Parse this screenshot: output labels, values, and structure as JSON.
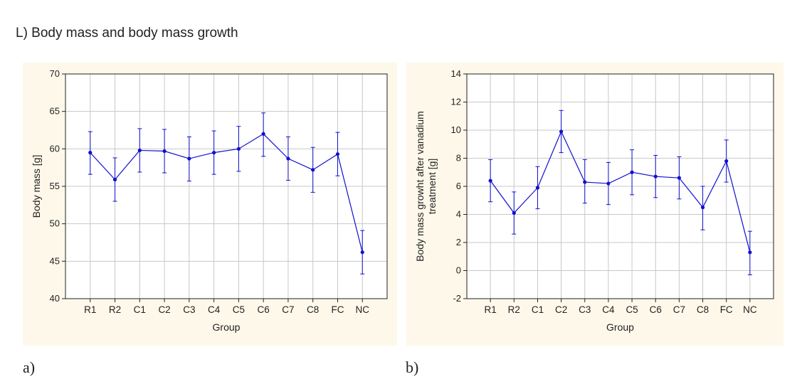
{
  "page_title": "L) Body mass and body mass growth",
  "panel_labels": [
    "a)",
    "b)"
  ],
  "colors": {
    "series": "#1010d0",
    "panel_bg": "#fdf8ea",
    "grid": "#c8c8c8"
  },
  "chart_data": [
    {
      "type": "line",
      "title": "",
      "xlabel": "Group",
      "ylabel": "Body mass [g]",
      "ylim": [
        40,
        70
      ],
      "yticks": [
        40,
        45,
        50,
        55,
        60,
        65,
        70
      ],
      "grid": true,
      "categories": [
        "R1",
        "R2",
        "C1",
        "C2",
        "C3",
        "C4",
        "C5",
        "C6",
        "C7",
        "C8",
        "FC",
        "NC"
      ],
      "series": [
        {
          "values": [
            59.5,
            55.9,
            59.8,
            59.7,
            58.7,
            59.5,
            60.0,
            62.0,
            58.7,
            57.2,
            59.3,
            46.2
          ],
          "error_low": [
            56.6,
            53.0,
            56.9,
            56.8,
            55.7,
            56.6,
            57.0,
            59.0,
            55.8,
            54.2,
            56.4,
            43.3
          ],
          "error_high": [
            62.3,
            58.8,
            62.7,
            62.6,
            61.6,
            62.4,
            63.0,
            64.8,
            61.6,
            60.2,
            62.2,
            49.1
          ]
        }
      ]
    },
    {
      "type": "line",
      "title": "",
      "xlabel": "Group",
      "ylabel_lines": [
        "Body mass growht after vanadium",
        "treatment [g]"
      ],
      "ylim": [
        -2,
        14
      ],
      "yticks": [
        -2,
        0,
        2,
        4,
        6,
        8,
        10,
        12,
        14
      ],
      "grid": true,
      "categories": [
        "R1",
        "R2",
        "C1",
        "C2",
        "C3",
        "C4",
        "C5",
        "C6",
        "C7",
        "C8",
        "FC",
        "NC"
      ],
      "series": [
        {
          "values": [
            6.4,
            4.1,
            5.9,
            9.9,
            6.3,
            6.2,
            7.0,
            6.7,
            6.6,
            4.5,
            7.8,
            1.3
          ],
          "error_low": [
            4.9,
            2.6,
            4.4,
            8.4,
            4.8,
            4.7,
            5.4,
            5.2,
            5.1,
            2.9,
            6.3,
            -0.3
          ],
          "error_high": [
            7.9,
            5.6,
            7.4,
            11.4,
            7.9,
            7.7,
            8.6,
            8.2,
            8.1,
            6.0,
            9.3,
            2.8
          ]
        }
      ]
    }
  ]
}
